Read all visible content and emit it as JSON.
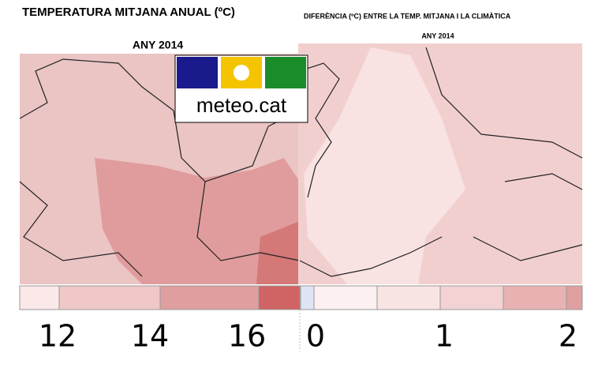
{
  "left_map": {
    "title": "TEMPERATURA MITJANA ANUAL (ºC)",
    "subtitle": "ANY 2014",
    "legend_labels": [
      "12",
      "14",
      "16"
    ]
  },
  "right_map": {
    "title": "DIFERÈNCIA (ºC) ENTRE LA TEMP. MITJANA I LA CLIMÀTICA",
    "subtitle": "ANY 2014",
    "legend_labels": [
      "0",
      "1",
      "2"
    ]
  },
  "logo": {
    "text": "meteo.cat"
  }
}
